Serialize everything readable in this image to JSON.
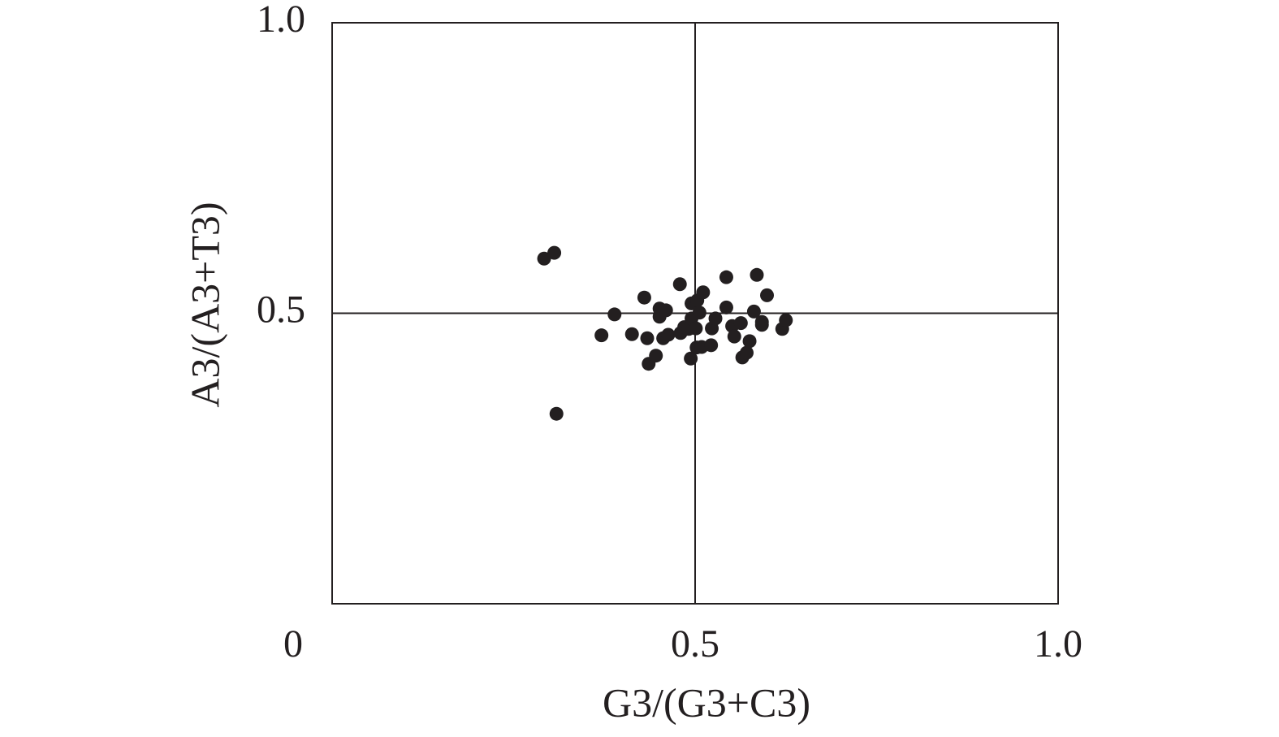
{
  "chart_data": {
    "type": "scatter",
    "x_label": "G3/(G3+C3)",
    "y_label": "A3/(A3+T3)",
    "xlim": [
      0,
      1
    ],
    "ylim": [
      0,
      1
    ],
    "xticks": [
      {
        "value": 0,
        "label": "0"
      },
      {
        "value": 0.5,
        "label": "0.5"
      },
      {
        "value": 1,
        "label": "1.0"
      }
    ],
    "yticks": [
      {
        "value": 0.5,
        "label": "0.5"
      },
      {
        "value": 1,
        "label": "1.0"
      }
    ],
    "grid": true,
    "color": "#231f20",
    "x": [
      0.292,
      0.306,
      0.309,
      0.371,
      0.389,
      0.413,
      0.43,
      0.434,
      0.436,
      0.446,
      0.451,
      0.451,
      0.46,
      0.456,
      0.463,
      0.479,
      0.48,
      0.485,
      0.491,
      0.495,
      0.495,
      0.494,
      0.501,
      0.502,
      0.503,
      0.506,
      0.511,
      0.509,
      0.522,
      0.523,
      0.528,
      0.543,
      0.543,
      0.551,
      0.554,
      0.563,
      0.565,
      0.571,
      0.575,
      0.581,
      0.585,
      0.592,
      0.592,
      0.599,
      0.62,
      0.625
    ],
    "values": [
      0.594,
      0.604,
      0.327,
      0.462,
      0.498,
      0.464,
      0.527,
      0.457,
      0.413,
      0.427,
      0.508,
      0.494,
      0.505,
      0.457,
      0.463,
      0.55,
      0.466,
      0.476,
      0.473,
      0.517,
      0.491,
      0.422,
      0.474,
      0.441,
      0.522,
      0.501,
      0.536,
      0.442,
      0.445,
      0.474,
      0.491,
      0.562,
      0.51,
      0.478,
      0.46,
      0.483,
      0.424,
      0.432,
      0.452,
      0.503,
      0.566,
      0.485,
      0.48,
      0.531,
      0.473,
      0.488
    ]
  }
}
